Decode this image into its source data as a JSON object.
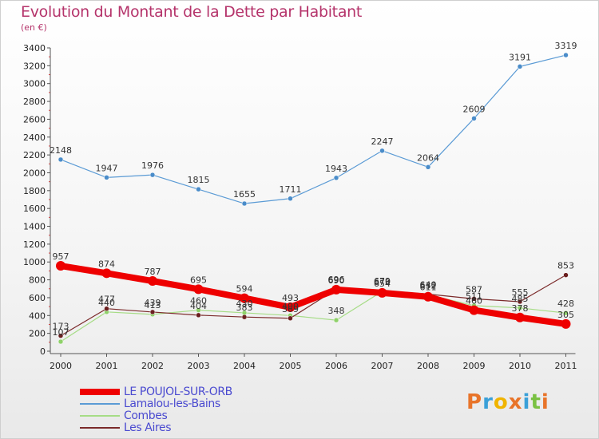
{
  "title": "Evolution du Montant de la Dette par Habitant",
  "subtitle": "(en €)",
  "logo": {
    "text": "Proxiti",
    "colors": [
      "#e8742a",
      "#3aa0d8",
      "#f0b400",
      "#e8742a",
      "#3aa0d8",
      "#7ac143",
      "#e8742a"
    ]
  },
  "chart_data": {
    "type": "line",
    "x": [
      "2000",
      "2001",
      "2002",
      "2003",
      "2004",
      "2005",
      "2006",
      "2007",
      "2008",
      "2009",
      "2010",
      "2011"
    ],
    "ylim": [
      0,
      3400
    ],
    "yticks": [
      0,
      200,
      400,
      600,
      800,
      1000,
      1200,
      1400,
      1600,
      1800,
      2000,
      2200,
      2400,
      2600,
      2800,
      3000,
      3200,
      3400
    ],
    "grid": false,
    "legend_position": "bottom-left",
    "series": [
      {
        "name": "Lamalou-les-Bains",
        "color": "#5b9bd5",
        "marker": "#4a8cc9",
        "width": 1.2,
        "values": [
          2148,
          1947,
          1976,
          1815,
          1655,
          1711,
          1943,
          2247,
          2064,
          2609,
          3191,
          3319
        ]
      },
      {
        "name": "Combes",
        "color": "#a6dc86",
        "marker": "#8fd16a",
        "width": 1.2,
        "values": [
          107,
          440,
          413,
          460,
          430,
          400,
          348,
          670,
          632,
          511,
          485,
          428
        ]
      },
      {
        "name": "Les Aires",
        "color": "#7b2a2a",
        "marker": "#6b1f1f",
        "width": 1.2,
        "values": [
          173,
          477,
          439,
          404,
          383,
          369,
          696,
          679,
          640,
          587,
          555,
          853
        ]
      },
      {
        "name": "LE POUJOL-SUR-ORB",
        "color": "#ee0000",
        "marker": "#ee0000",
        "width": 8,
        "values": [
          957,
          874,
          787,
          695,
          594,
          493,
          690,
          654,
          611,
          460,
          378,
          305
        ]
      }
    ],
    "legend_order": [
      "LE POUJOL-SUR-ORB",
      "Lamalou-les-Bains",
      "Combes",
      "Les Aires"
    ]
  }
}
